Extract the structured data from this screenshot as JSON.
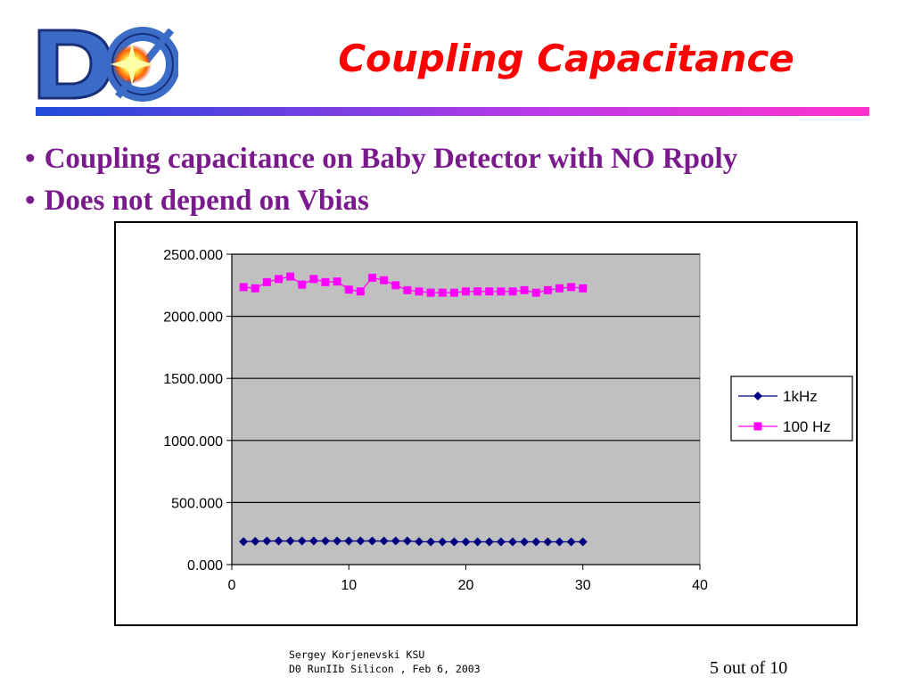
{
  "slide": {
    "title": "Coupling Capacitance",
    "bullets": [
      "Coupling capacitance on Baby Detector with NO Rpoly",
      "Does not depend on Vbias"
    ],
    "bullet_glyph": "•",
    "footer": {
      "author": "Sergey Korjenevski KSU",
      "event": "D0 RunIIb Silicon ,  Feb 6, 2003",
      "page": "5 out of 10"
    },
    "logo_icon": "d0-logo-icon"
  },
  "chart_data": {
    "type": "line",
    "title": "",
    "xlabel": "",
    "ylabel": "",
    "xlim": [
      0,
      40
    ],
    "ylim": [
      0,
      2500
    ],
    "x_ticks": [
      "0",
      "10",
      "20",
      "30",
      "40"
    ],
    "y_ticks": [
      "0.000",
      "500.000",
      "1000.000",
      "1500.000",
      "2000.000",
      "2500.000"
    ],
    "grid": "horizontal",
    "plot_background": "#c0c0c0",
    "legend": "right",
    "x": [
      1,
      2,
      3,
      4,
      5,
      6,
      7,
      8,
      9,
      10,
      11,
      12,
      13,
      14,
      15,
      16,
      17,
      18,
      19,
      20,
      21,
      22,
      23,
      24,
      25,
      26,
      27,
      28,
      29,
      30
    ],
    "series": [
      {
        "name": "1kHz",
        "color": "#000080",
        "marker": "diamond",
        "values": [
          185,
          188,
          190,
          190,
          190,
          190,
          190,
          190,
          190,
          190,
          190,
          190,
          190,
          190,
          190,
          185,
          183,
          183,
          183,
          183,
          183,
          183,
          183,
          183,
          183,
          183,
          183,
          183,
          183,
          183
        ]
      },
      {
        "name": "100 Hz",
        "color": "#ff00ff",
        "marker": "square",
        "values": [
          2235,
          2225,
          2275,
          2300,
          2320,
          2255,
          2300,
          2275,
          2280,
          2215,
          2200,
          2310,
          2290,
          2250,
          2210,
          2200,
          2190,
          2190,
          2190,
          2200,
          2200,
          2200,
          2200,
          2200,
          2210,
          2190,
          2210,
          2225,
          2235,
          2225
        ]
      }
    ]
  }
}
